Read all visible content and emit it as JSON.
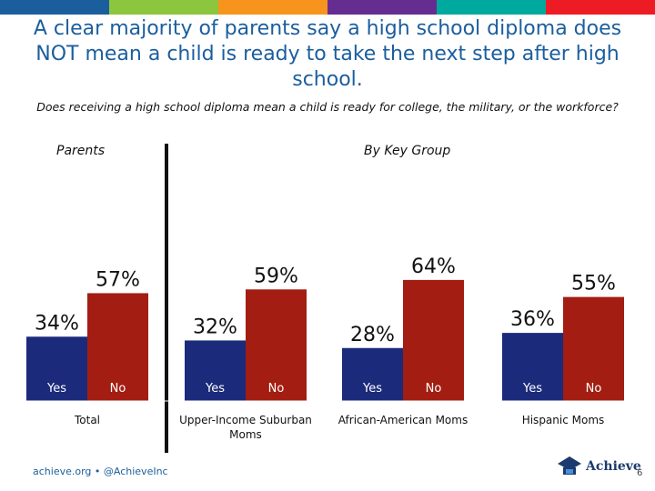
{
  "title": "A clear majority of parents say a high school diploma does NOT mean a child is ready to take the next step after high school.",
  "question": "Does receiving a high school diploma mean a child is ready for college, the military, or the workforce?",
  "panels": {
    "parents": "Parents",
    "key_group": "By Key Group"
  },
  "colors": {
    "yes": "#1b2a7a",
    "no": "#a31d12",
    "title": "#1b5e9e",
    "topbar": [
      "#1b5e9e",
      "#8cc63f",
      "#f7941d",
      "#662d91",
      "#00a99d",
      "#ed1c24"
    ]
  },
  "footer": {
    "text": "achieve.org • @AchieveInc",
    "logo": "Achieve",
    "page": "6"
  },
  "chart_data": {
    "type": "bar",
    "title": "Does receiving a high school diploma mean a child is ready for college, the military, or the workforce?",
    "categories": [
      "Total",
      "Upper-Income Suburban Moms",
      "African-American Moms",
      "Hispanic Moms"
    ],
    "series": [
      {
        "name": "Yes",
        "values": [
          34,
          32,
          28,
          36
        ],
        "labels": [
          "34%",
          "32%",
          "28%",
          "36%"
        ]
      },
      {
        "name": "No",
        "values": [
          57,
          59,
          64,
          55
        ],
        "labels": [
          "57%",
          "59%",
          "64%",
          "55%"
        ]
      }
    ],
    "xlabel": "",
    "ylabel": "",
    "ylim": [
      0,
      100
    ]
  }
}
